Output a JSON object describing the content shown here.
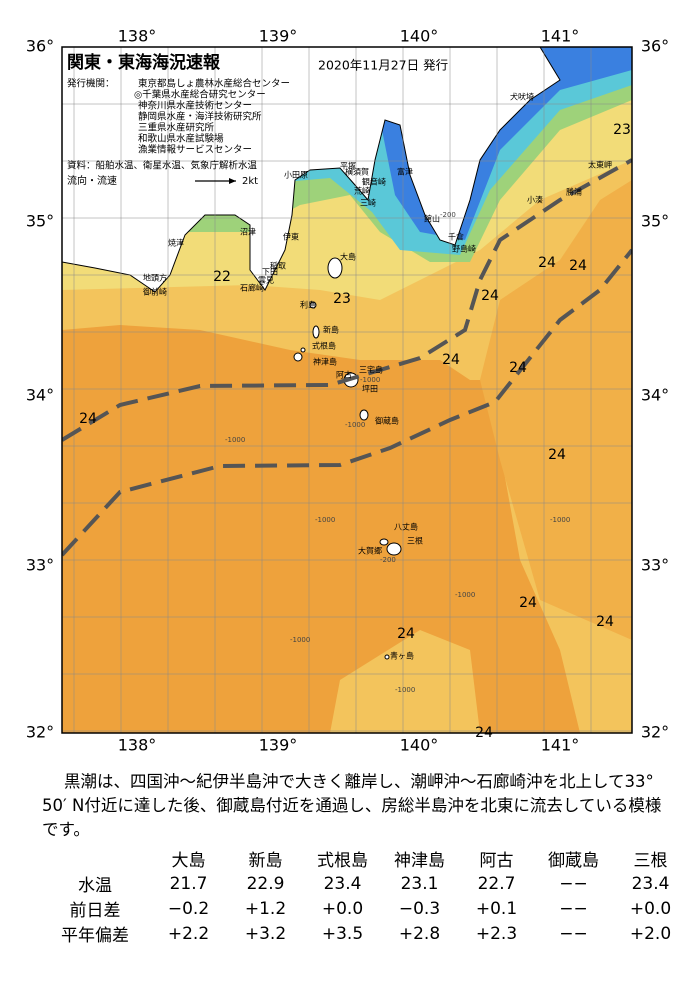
{
  "map": {
    "title": "関東・東海海況速報",
    "issued": "2020年11月27日 発行",
    "publisher_label": "発行機関：",
    "publishers": [
      "東京都島しょ農林水産総合センター",
      "◎千葉県水産総合研究センター",
      "神奈川県水産技術センター",
      "静岡県水産・海洋技術研究所",
      "三重県水産研究所",
      "和歌山県水産試験場",
      "漁業情報サービスセンター"
    ],
    "sources": "資料：船舶水温、衛星水温、気象庁解析水温",
    "current_legend": "流向・流速",
    "current_scale": "2kt",
    "lon_labels": [
      "138°",
      "139°",
      "140°",
      "141°"
    ],
    "lat_labels": [
      "36°",
      "35°",
      "34°",
      "33°",
      "32°"
    ],
    "places": [
      "犬吠埼",
      "太東岬",
      "勝浦",
      "小湊",
      "千倉",
      "館山",
      "野島崎",
      "富津",
      "横須賀",
      "観音崎",
      "荒崎",
      "三崎",
      "平塚",
      "小田原",
      "伊東",
      "稲取",
      "下田",
      "雲見",
      "石廊崎",
      "沼津",
      "焼津",
      "地頭方",
      "御前崎",
      "大島",
      "利島",
      "新島",
      "式根島",
      "神津島",
      "三宅島",
      "阿古",
      "坪田",
      "御蔵島",
      "八丈島",
      "大賀郷",
      "三根",
      "青ヶ島"
    ],
    "isotherm_labels": [
      "23",
      "24",
      "24",
      "22",
      "23",
      "24",
      "24",
      "24",
      "24",
      "24",
      "24",
      "24",
      "24",
      "24"
    ],
    "depth_labels": [
      "-200",
      "-200",
      "-1000",
      "-1000",
      "-1000",
      "-1000",
      "-1000",
      "-1000",
      "-1000",
      "-1000"
    ]
  },
  "summary": "黒潮は、四国沖～紀伊半島沖で大きく離岸し、潮岬沖～石廊崎沖を北上して33° 50′ N付近に達した後、御蔵島付近を通過し、房総半島沖を北東に流去している模様です。",
  "table": {
    "header": [
      "大島",
      "新島",
      "式根島",
      "神津島",
      "阿古",
      "御蔵島",
      "三根"
    ],
    "rows": [
      [
        "水温",
        "21.7",
        "22.9",
        "23.4",
        "23.1",
        "22.7",
        "−−",
        "23.4"
      ],
      [
        "前日差",
        "−0.2",
        "+1.2",
        "+0.0",
        "−0.3",
        "+0.1",
        "−−",
        "+0.0"
      ],
      [
        "平年偏差",
        "+2.2",
        "+3.2",
        "+3.5",
        "+2.8",
        "+2.3",
        "−−",
        "+2.0"
      ]
    ]
  }
}
